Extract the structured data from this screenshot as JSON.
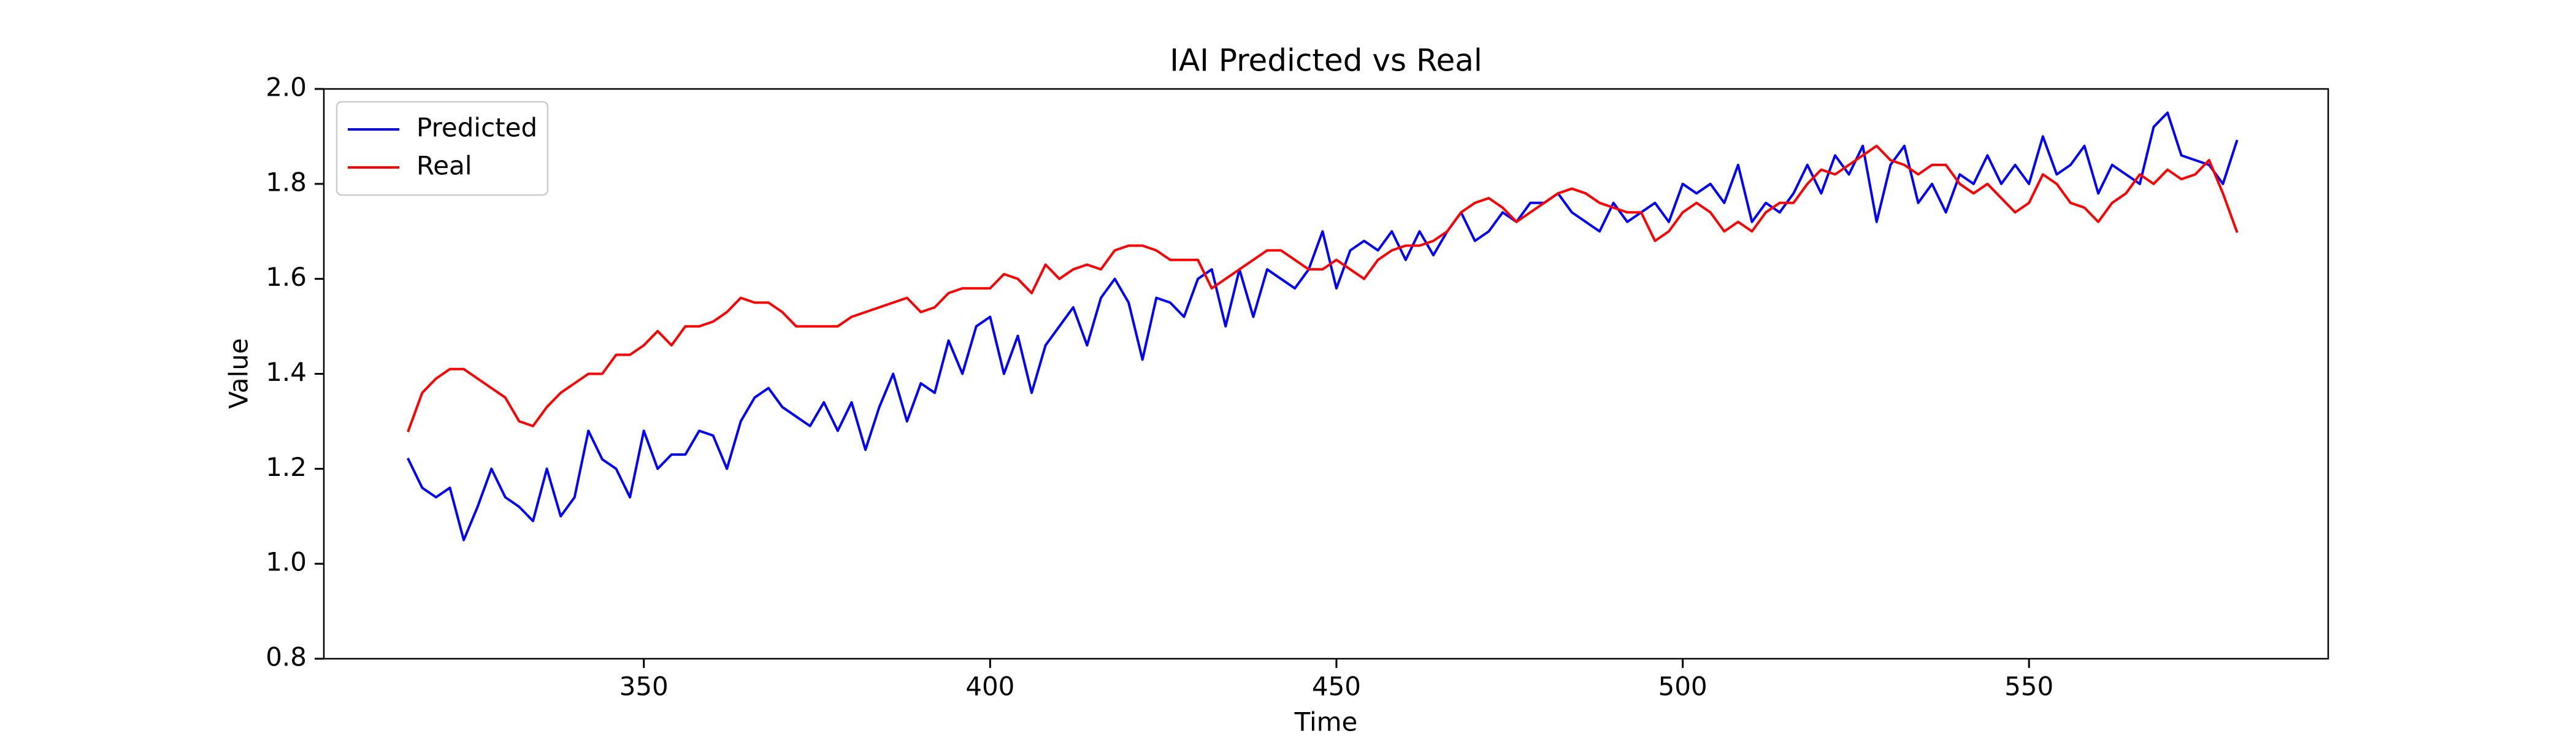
{
  "chart_data": {
    "type": "line",
    "title": "IAI Predicted vs Real",
    "xlabel": "Time",
    "ylabel": "Value",
    "x": [
      316,
      318,
      320,
      322,
      324,
      326,
      328,
      330,
      332,
      334,
      336,
      338,
      340,
      342,
      344,
      346,
      348,
      350,
      352,
      354,
      356,
      358,
      360,
      362,
      364,
      366,
      368,
      370,
      372,
      374,
      376,
      378,
      380,
      382,
      384,
      386,
      388,
      390,
      392,
      394,
      396,
      398,
      400,
      402,
      404,
      406,
      408,
      410,
      412,
      414,
      416,
      418,
      420,
      422,
      424,
      426,
      428,
      430,
      432,
      434,
      436,
      438,
      440,
      442,
      444,
      446,
      448,
      450,
      452,
      454,
      456,
      458,
      460,
      462,
      464,
      466,
      468,
      470,
      472,
      474,
      476,
      478,
      480,
      482,
      484,
      486,
      488,
      490,
      492,
      494,
      496,
      498,
      500,
      502,
      504,
      506,
      508,
      510,
      512,
      514,
      516,
      518,
      520,
      522,
      524,
      526,
      528,
      530,
      532,
      534,
      536,
      538,
      540,
      542,
      544,
      546,
      548,
      550,
      552,
      554,
      556,
      558,
      560,
      562,
      564,
      566,
      568,
      570,
      572,
      574,
      576,
      578,
      580
    ],
    "series": [
      {
        "name": "Predicted",
        "color": "#0000ff",
        "values": [
          1.22,
          1.16,
          1.14,
          1.16,
          1.05,
          1.12,
          1.2,
          1.14,
          1.12,
          1.09,
          1.2,
          1.1,
          1.14,
          1.28,
          1.22,
          1.2,
          1.14,
          1.28,
          1.2,
          1.23,
          1.23,
          1.28,
          1.27,
          1.2,
          1.3,
          1.35,
          1.37,
          1.33,
          1.31,
          1.29,
          1.34,
          1.28,
          1.34,
          1.24,
          1.33,
          1.4,
          1.3,
          1.38,
          1.36,
          1.47,
          1.4,
          1.5,
          1.52,
          1.4,
          1.48,
          1.36,
          1.46,
          1.5,
          1.54,
          1.46,
          1.56,
          1.6,
          1.55,
          1.43,
          1.56,
          1.55,
          1.52,
          1.6,
          1.62,
          1.5,
          1.62,
          1.52,
          1.62,
          1.6,
          1.58,
          1.62,
          1.7,
          1.58,
          1.66,
          1.68,
          1.66,
          1.7,
          1.64,
          1.7,
          1.65,
          1.7,
          1.74,
          1.68,
          1.7,
          1.74,
          1.72,
          1.76,
          1.76,
          1.78,
          1.74,
          1.72,
          1.7,
          1.76,
          1.72,
          1.74,
          1.76,
          1.72,
          1.8,
          1.78,
          1.8,
          1.76,
          1.84,
          1.72,
          1.76,
          1.74,
          1.78,
          1.84,
          1.78,
          1.86,
          1.82,
          1.88,
          1.72,
          1.84,
          1.88,
          1.76,
          1.8,
          1.74,
          1.82,
          1.8,
          1.86,
          1.8,
          1.84,
          1.8,
          1.9,
          1.82,
          1.84,
          1.88,
          1.78,
          1.84,
          1.82,
          1.8,
          1.92,
          1.95,
          1.86,
          1.85,
          1.84,
          1.8,
          1.89
        ]
      },
      {
        "name": "Real",
        "color": "#ff0000",
        "values": [
          1.28,
          1.36,
          1.39,
          1.41,
          1.41,
          1.39,
          1.37,
          1.35,
          1.3,
          1.29,
          1.33,
          1.36,
          1.38,
          1.4,
          1.4,
          1.44,
          1.44,
          1.46,
          1.49,
          1.46,
          1.5,
          1.5,
          1.51,
          1.53,
          1.56,
          1.55,
          1.55,
          1.53,
          1.5,
          1.5,
          1.5,
          1.5,
          1.52,
          1.53,
          1.54,
          1.55,
          1.56,
          1.53,
          1.54,
          1.57,
          1.58,
          1.58,
          1.58,
          1.61,
          1.6,
          1.57,
          1.63,
          1.6,
          1.62,
          1.63,
          1.62,
          1.66,
          1.67,
          1.67,
          1.66,
          1.64,
          1.64,
          1.64,
          1.58,
          1.6,
          1.62,
          1.64,
          1.66,
          1.66,
          1.64,
          1.62,
          1.62,
          1.64,
          1.62,
          1.6,
          1.64,
          1.66,
          1.67,
          1.67,
          1.68,
          1.7,
          1.74,
          1.76,
          1.77,
          1.75,
          1.72,
          1.74,
          1.76,
          1.78,
          1.79,
          1.78,
          1.76,
          1.75,
          1.74,
          1.74,
          1.68,
          1.7,
          1.74,
          1.76,
          1.74,
          1.7,
          1.72,
          1.7,
          1.74,
          1.76,
          1.76,
          1.8,
          1.83,
          1.82,
          1.84,
          1.86,
          1.88,
          1.85,
          1.84,
          1.82,
          1.84,
          1.84,
          1.8,
          1.78,
          1.8,
          1.77,
          1.74,
          1.76,
          1.82,
          1.8,
          1.76,
          1.75,
          1.72,
          1.76,
          1.78,
          1.82,
          1.8,
          1.83,
          1.81,
          1.82,
          1.85,
          1.78,
          1.7
        ]
      }
    ],
    "xlim": [
      303.8,
      593.2
    ],
    "xticks": [
      350,
      400,
      450,
      500,
      550
    ],
    "ylim": [
      0.8,
      2.0
    ],
    "yticks": [
      0.8,
      {
        "value": 1,
        "label": "1.0"
      },
      1.2,
      1.4,
      1.6,
      1.8,
      {
        "value": 2,
        "label": "2.0"
      }
    ],
    "grid": false,
    "legend": "upper left"
  }
}
